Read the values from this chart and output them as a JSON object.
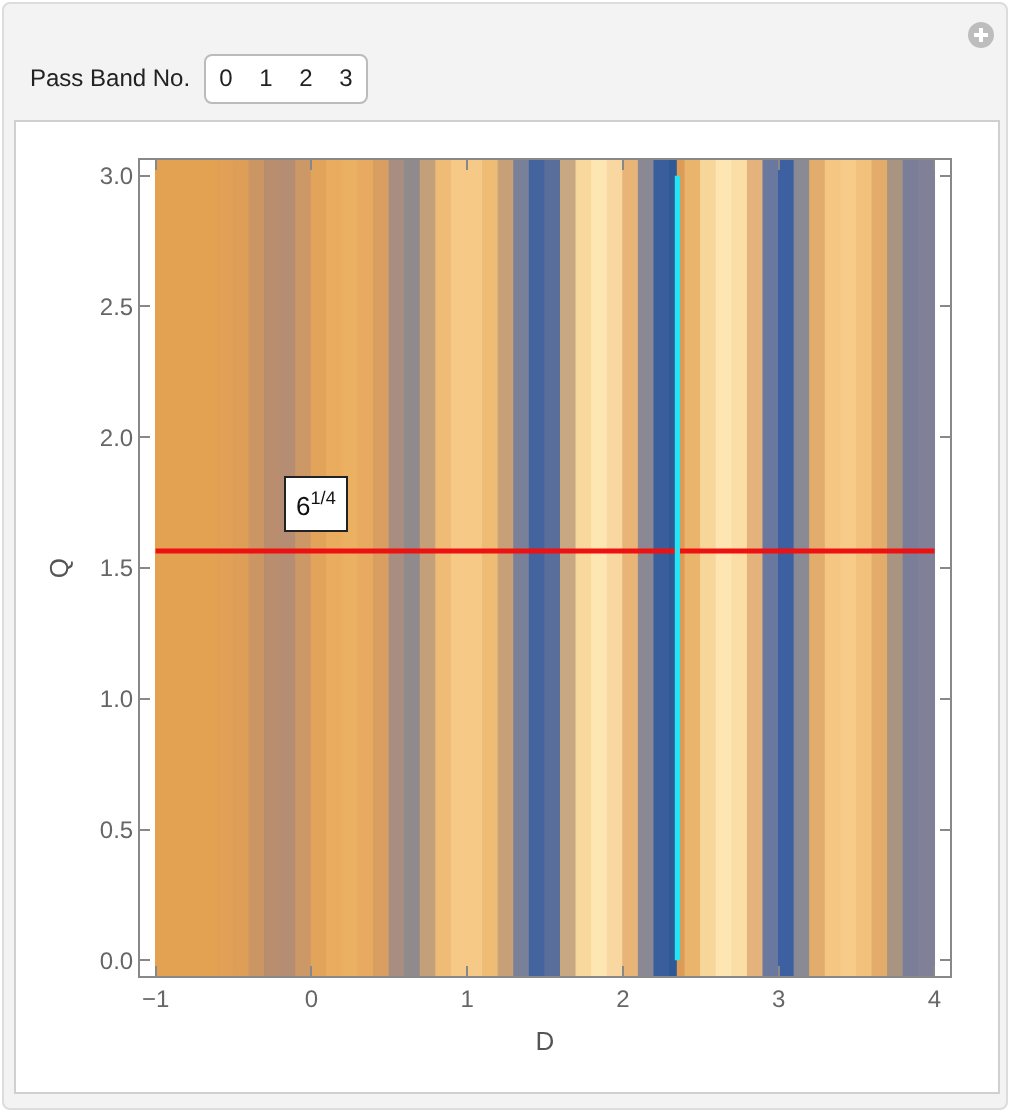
{
  "chart_data": {
    "type": "line",
    "xlabel": "D",
    "ylabel": "Q",
    "xlim": [
      -1.1,
      4.1
    ],
    "ylim": [
      -0.06,
      3.06
    ],
    "xticks": [
      {
        "value": -1,
        "label": "−1"
      },
      0,
      1,
      2,
      3,
      4
    ],
    "yticks": [
      {
        "value": 0,
        "label": "0.0"
      },
      {
        "value": 0.5,
        "label": "0.5"
      },
      {
        "value": 1,
        "label": "1.0"
      },
      {
        "value": 1.5,
        "label": "1.5"
      },
      {
        "value": 2,
        "label": "2.0"
      },
      {
        "value": 2.5,
        "label": "2.5"
      },
      {
        "value": 3,
        "label": "3.0"
      }
    ],
    "series": [
      {
        "name": "6$^{1/4}$",
        "color": "#ee1111",
        "x": [
          -1,
          4
        ],
        "values": [
          1.5651,
          1.5651
        ]
      },
      {
        "color": "#22e4f4",
        "x": [
          2.35,
          2.35
        ],
        "values": [
          0,
          3
        ]
      }
    ],
    "bands": [
      {
        "axis": "x",
        "from": -1,
        "to": -0.6,
        "color": "#e3a152"
      },
      {
        "axis": "x",
        "from": -0.6,
        "to": -0.5,
        "color": "#e1a055"
      },
      {
        "axis": "x",
        "from": -0.5,
        "to": -0.4,
        "color": "#dd9e57"
      },
      {
        "axis": "x",
        "from": -0.4,
        "to": -0.3,
        "color": "#cc9662"
      },
      {
        "axis": "x",
        "from": -0.3,
        "to": -0.2,
        "color": "#b88e6e"
      },
      {
        "axis": "x",
        "from": -0.2,
        "to": -0.1,
        "color": "#b48d72"
      },
      {
        "axis": "x",
        "from": -0.1,
        "to": 0,
        "color": "#cc9866"
      },
      {
        "axis": "x",
        "from": 0,
        "to": 0.1,
        "color": "#e2a45a"
      },
      {
        "axis": "x",
        "from": 0.1,
        "to": 0.2,
        "color": "#eaac5e"
      },
      {
        "axis": "x",
        "from": 0.2,
        "to": 0.3,
        "color": "#ecb062"
      },
      {
        "axis": "x",
        "from": 0.3,
        "to": 0.4,
        "color": "#e8aa60"
      },
      {
        "axis": "x",
        "from": 0.4,
        "to": 0.5,
        "color": "#d89e62"
      },
      {
        "axis": "x",
        "from": 0.5,
        "to": 0.6,
        "color": "#a88e80"
      },
      {
        "axis": "x",
        "from": 0.6,
        "to": 0.7,
        "color": "#908a8c"
      },
      {
        "axis": "x",
        "from": 0.7,
        "to": 0.8,
        "color": "#c4a07a"
      },
      {
        "axis": "x",
        "from": 0.8,
        "to": 0.9,
        "color": "#eebc76"
      },
      {
        "axis": "x",
        "from": 0.9,
        "to": 1.1,
        "color": "#f6ca86"
      },
      {
        "axis": "x",
        "from": 1.1,
        "to": 1.2,
        "color": "#eebc74"
      },
      {
        "axis": "x",
        "from": 1.2,
        "to": 1.3,
        "color": "#c8a078"
      },
      {
        "axis": "x",
        "from": 1.3,
        "to": 1.4,
        "color": "#7a8098"
      },
      {
        "axis": "x",
        "from": 1.4,
        "to": 1.5,
        "color": "#4464a0"
      },
      {
        "axis": "x",
        "from": 1.5,
        "to": 1.6,
        "color": "#5a6e9c"
      },
      {
        "axis": "x",
        "from": 1.6,
        "to": 1.7,
        "color": "#c8a882"
      },
      {
        "axis": "x",
        "from": 1.7,
        "to": 1.8,
        "color": "#f8d89c"
      },
      {
        "axis": "x",
        "from": 1.8,
        "to": 1.9,
        "color": "#fde6b2"
      },
      {
        "axis": "x",
        "from": 1.9,
        "to": 2,
        "color": "#f8d8a0"
      },
      {
        "axis": "x",
        "from": 2,
        "to": 2.1,
        "color": "#e8b478"
      },
      {
        "axis": "x",
        "from": 2.1,
        "to": 2.2,
        "color": "#8a8894"
      },
      {
        "axis": "x",
        "from": 2.2,
        "to": 2.3,
        "color": "#3a5e9c"
      },
      {
        "axis": "x",
        "from": 2.3,
        "to": 2.35,
        "color": "#2f5896"
      },
      {
        "axis": "x",
        "from": 2.35,
        "to": 2.4,
        "color": "#dc9c58"
      },
      {
        "axis": "x",
        "from": 2.4,
        "to": 2.5,
        "color": "#eab46c"
      },
      {
        "axis": "x",
        "from": 2.5,
        "to": 2.6,
        "color": "#f7d69a"
      },
      {
        "axis": "x",
        "from": 2.6,
        "to": 2.7,
        "color": "#fde6b2"
      },
      {
        "axis": "x",
        "from": 2.7,
        "to": 2.8,
        "color": "#fbdea6"
      },
      {
        "axis": "x",
        "from": 2.8,
        "to": 2.9,
        "color": "#e4b27c"
      },
      {
        "axis": "x",
        "from": 2.9,
        "to": 3,
        "color": "#6a78a0"
      },
      {
        "axis": "x",
        "from": 3,
        "to": 3.1,
        "color": "#3c60a0"
      },
      {
        "axis": "x",
        "from": 3.1,
        "to": 3.2,
        "color": "#8a8a94"
      },
      {
        "axis": "x",
        "from": 3.2,
        "to": 3.3,
        "color": "#e2ac6c"
      },
      {
        "axis": "x",
        "from": 3.3,
        "to": 3.4,
        "color": "#f4c682"
      },
      {
        "axis": "x",
        "from": 3.4,
        "to": 3.5,
        "color": "#f6cc88"
      },
      {
        "axis": "x",
        "from": 3.5,
        "to": 3.6,
        "color": "#f2c27c"
      },
      {
        "axis": "x",
        "from": 3.6,
        "to": 3.7,
        "color": "#e4ac6a"
      },
      {
        "axis": "x",
        "from": 3.7,
        "to": 3.8,
        "color": "#a89480"
      },
      {
        "axis": "x",
        "from": 3.8,
        "to": 3.9,
        "color": "#7a7e98"
      },
      {
        "axis": "x",
        "from": 3.9,
        "to": 4,
        "color": "#808098"
      }
    ],
    "annotations": [
      "Pass Band No.",
      "0",
      "1",
      "2",
      "3"
    ]
  }
}
